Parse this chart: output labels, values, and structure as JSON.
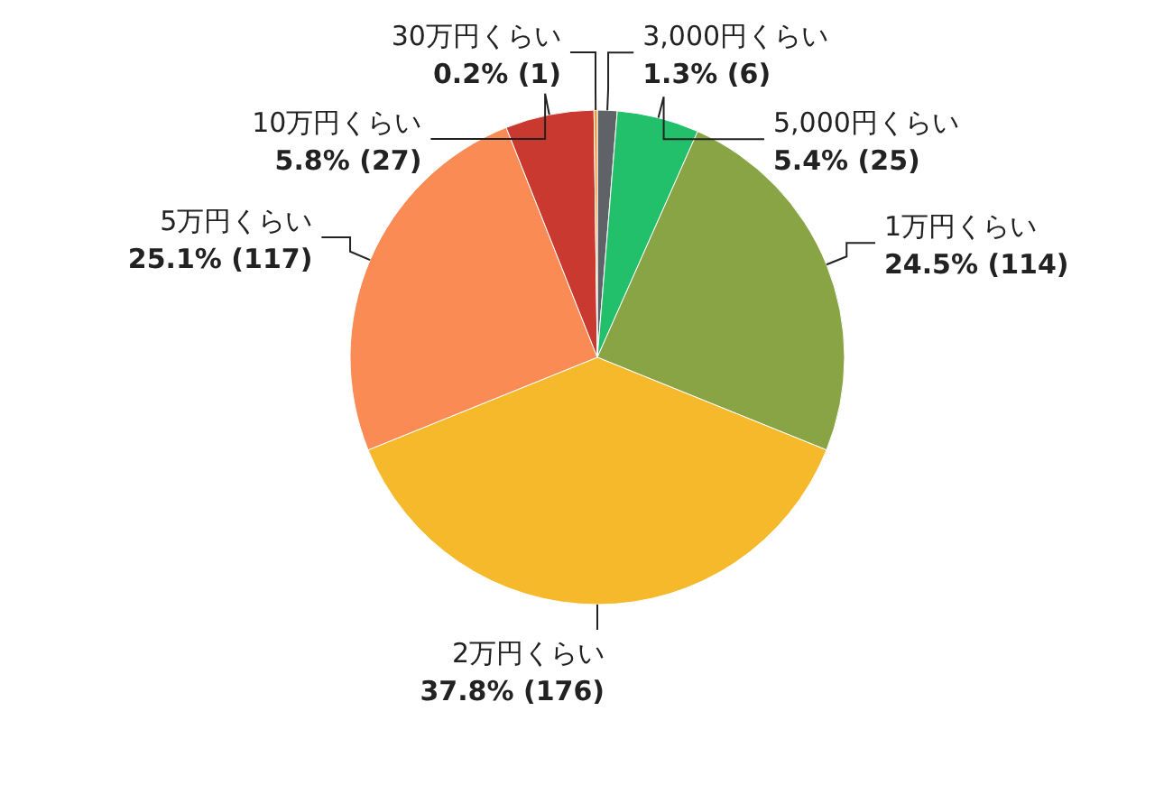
{
  "chart_data": {
    "type": "pie",
    "categories": [
      "3,000円くらい",
      "5,000円くらい",
      "1万円くらい",
      "2万円くらい",
      "5万円くらい",
      "10万円くらい",
      "30万円くらい"
    ],
    "values": [
      6,
      25,
      114,
      176,
      117,
      27,
      1
    ],
    "colors": [
      "#5f6368",
      "#22c06b",
      "#88a445",
      "#f6b92b",
      "#fb8b55",
      "#c9392f",
      "#f29a38"
    ],
    "value_labels": [
      "1.3% (6)",
      "5.4% (25)",
      "24.5% (114)",
      "37.8% (176)",
      "25.1% (117)",
      "5.8% (27)",
      "0.2% (1)"
    ]
  }
}
